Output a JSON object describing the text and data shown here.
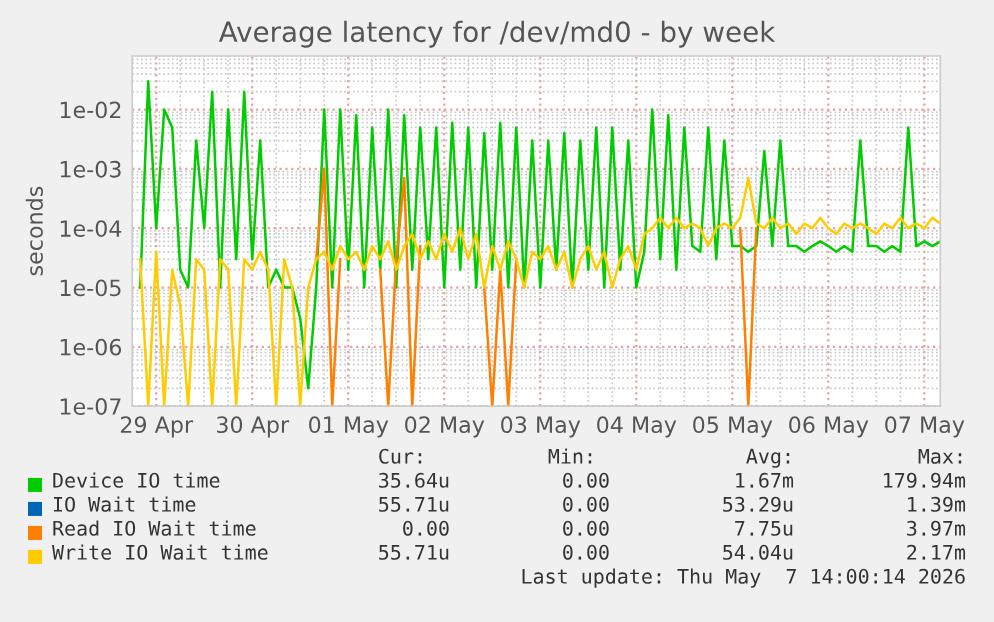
{
  "chart_data": {
    "type": "line",
    "title": "Average latency for /dev/md0 - by week",
    "ylabel": "seconds",
    "log": "y",
    "grid": true,
    "legend": "bottom",
    "marker": "none",
    "line_style": "solid",
    "x": [
      "2026-04-28T20:00",
      "2026-04-28T22:00",
      "2026-04-29T00:00",
      "2026-04-29T02:00",
      "2026-04-29T04:00",
      "2026-04-29T06:00",
      "2026-04-29T08:00",
      "2026-04-29T10:00",
      "2026-04-29T12:00",
      "2026-04-29T14:00",
      "2026-04-29T16:00",
      "2026-04-29T18:00",
      "2026-04-29T20:00",
      "2026-04-29T22:00",
      "2026-04-30T00:00",
      "2026-04-30T02:00",
      "2026-04-30T04:00",
      "2026-04-30T06:00",
      "2026-04-30T08:00",
      "2026-04-30T10:00",
      "2026-04-30T12:00",
      "2026-04-30T14:00",
      "2026-04-30T16:00",
      "2026-04-30T18:00",
      "2026-04-30T20:00",
      "2026-04-30T22:00",
      "2026-05-01T00:00",
      "2026-05-01T02:00",
      "2026-05-01T04:00",
      "2026-05-01T06:00",
      "2026-05-01T08:00",
      "2026-05-01T10:00",
      "2026-05-01T12:00",
      "2026-05-01T14:00",
      "2026-05-01T16:00",
      "2026-05-01T18:00",
      "2026-05-01T20:00",
      "2026-05-01T22:00",
      "2026-05-02T00:00",
      "2026-05-02T02:00",
      "2026-05-02T04:00",
      "2026-05-02T06:00",
      "2026-05-02T08:00",
      "2026-05-02T10:00",
      "2026-05-02T12:00",
      "2026-05-02T14:00",
      "2026-05-02T16:00",
      "2026-05-02T18:00",
      "2026-05-02T20:00",
      "2026-05-02T22:00",
      "2026-05-03T00:00",
      "2026-05-03T02:00",
      "2026-05-03T04:00",
      "2026-05-03T06:00",
      "2026-05-03T08:00",
      "2026-05-03T10:00",
      "2026-05-03T12:00",
      "2026-05-03T14:00",
      "2026-05-03T16:00",
      "2026-05-03T18:00",
      "2026-05-03T20:00",
      "2026-05-03T22:00",
      "2026-05-04T00:00",
      "2026-05-04T02:00",
      "2026-05-04T04:00",
      "2026-05-04T06:00",
      "2026-05-04T08:00",
      "2026-05-04T10:00",
      "2026-05-04T12:00",
      "2026-05-04T14:00",
      "2026-05-04T16:00",
      "2026-05-04T18:00",
      "2026-05-04T20:00",
      "2026-05-04T22:00",
      "2026-05-05T00:00",
      "2026-05-05T02:00",
      "2026-05-05T04:00",
      "2026-05-05T06:00",
      "2026-05-05T08:00",
      "2026-05-05T10:00",
      "2026-05-05T12:00",
      "2026-05-05T14:00",
      "2026-05-05T16:00",
      "2026-05-05T18:00",
      "2026-05-05T20:00",
      "2026-05-05T22:00",
      "2026-05-06T00:00",
      "2026-05-06T02:00",
      "2026-05-06T04:00",
      "2026-05-06T06:00",
      "2026-05-06T08:00",
      "2026-05-06T10:00",
      "2026-05-06T12:00",
      "2026-05-06T14:00",
      "2026-05-06T16:00",
      "2026-05-06T18:00",
      "2026-05-06T20:00",
      "2026-05-06T22:00",
      "2026-05-07T00:00",
      "2026-05-07T02:00",
      "2026-05-07T04:00"
    ],
    "xlim": [
      "2026-04-28T18:00",
      "2026-05-07T04:00"
    ],
    "xticks": [
      {
        "value": "2026-04-29",
        "label": "29 Apr"
      },
      {
        "value": "2026-04-30",
        "label": "30 Apr"
      },
      {
        "value": "2026-05-01",
        "label": "01 May"
      },
      {
        "value": "2026-05-02",
        "label": "02 May"
      },
      {
        "value": "2026-05-03",
        "label": "03 May"
      },
      {
        "value": "2026-05-04",
        "label": "04 May"
      },
      {
        "value": "2026-05-05",
        "label": "05 May"
      },
      {
        "value": "2026-05-06",
        "label": "06 May"
      },
      {
        "value": "2026-05-07",
        "label": "07 May"
      }
    ],
    "ylim": [
      1e-07,
      0.08
    ],
    "yticks": [
      {
        "value": 1e-07,
        "label": "1e-07"
      },
      {
        "value": 1e-06,
        "label": "1e-06"
      },
      {
        "value": 1e-05,
        "label": "1e-05"
      },
      {
        "value": 0.0001,
        "label": "1e-04"
      },
      {
        "value": 0.001,
        "label": "1e-03"
      },
      {
        "value": 0.01,
        "label": "1e-02"
      }
    ],
    "series": [
      {
        "name": "Device IO time",
        "color": "#00cc00",
        "values": [
          1e-05,
          0.03,
          0.0001,
          0.01,
          0.005,
          2e-05,
          1e-05,
          0.003,
          0.0001,
          0.02,
          1e-05,
          0.01,
          3e-05,
          0.02,
          3e-05,
          0.003,
          1e-05,
          2e-05,
          1e-05,
          1e-05,
          3e-06,
          2e-07,
          1e-05,
          0.01,
          1e-05,
          0.01,
          2e-05,
          0.008,
          1e-05,
          0.005,
          2e-05,
          0.01,
          1e-05,
          0.008,
          2e-05,
          0.005,
          3e-05,
          0.005,
          1e-05,
          0.006,
          2e-05,
          0.005,
          1e-05,
          0.004,
          2e-05,
          0.006,
          1e-05,
          0.005,
          1e-05,
          0.003,
          1e-05,
          0.003,
          2e-05,
          0.004,
          1e-05,
          0.003,
          2e-05,
          0.005,
          1e-05,
          0.005,
          2e-05,
          0.003,
          1e-05,
          4e-05,
          0.01,
          3e-05,
          0.008,
          2e-05,
          0.005,
          5e-05,
          4e-05,
          0.005,
          3e-05,
          0.003,
          5e-05,
          5e-05,
          4e-05,
          5e-05,
          0.002,
          5e-05,
          0.003,
          5e-05,
          5e-05,
          4e-05,
          5e-05,
          6e-05,
          5e-05,
          4e-05,
          5e-05,
          4e-05,
          0.003,
          5e-05,
          5e-05,
          4e-05,
          5e-05,
          4e-05,
          0.005,
          5e-05,
          6e-05,
          5e-05,
          6e-05
        ]
      },
      {
        "name": "IO Wait time",
        "color": "#0066b3",
        "values": [
          null,
          null,
          null,
          null,
          null,
          null,
          null,
          null,
          null,
          null,
          null,
          null,
          null,
          null,
          null,
          null,
          null,
          null,
          null,
          null,
          null,
          null,
          null,
          null,
          null,
          null,
          null,
          null,
          null,
          null,
          null,
          null,
          null,
          null,
          null,
          null,
          null,
          null,
          null,
          null,
          null,
          null,
          null,
          null,
          null,
          null,
          null,
          null,
          null,
          null,
          null,
          null,
          null,
          null,
          null,
          null,
          null,
          null,
          null,
          null,
          null,
          null,
          null,
          null,
          null,
          null,
          null,
          null,
          null,
          null,
          null,
          null,
          null,
          null,
          null,
          null,
          null,
          null,
          null,
          null,
          null,
          null,
          null,
          null,
          null,
          null,
          null,
          null,
          null,
          null,
          null,
          null,
          null,
          null,
          null,
          null,
          null,
          null,
          null,
          null,
          null
        ]
      },
      {
        "name": "Read IO Wait time",
        "color": "#ff8000",
        "values": [
          null,
          null,
          null,
          null,
          null,
          null,
          null,
          null,
          null,
          null,
          null,
          null,
          null,
          null,
          null,
          null,
          null,
          null,
          null,
          null,
          null,
          null,
          3e-05,
          0.001,
          1e-07,
          3e-05,
          null,
          null,
          null,
          null,
          2e-05,
          1e-07,
          3e-05,
          0.0007,
          1e-07,
          5e-05,
          null,
          null,
          null,
          null,
          null,
          null,
          null,
          1e-05,
          1e-07,
          2e-05,
          1e-07,
          3e-05,
          null,
          null,
          null,
          null,
          null,
          null,
          null,
          null,
          null,
          null,
          null,
          null,
          null,
          null,
          null,
          null,
          null,
          null,
          null,
          null,
          null,
          null,
          null,
          null,
          null,
          null,
          null,
          0.0001,
          1e-07,
          0.0001,
          null,
          null,
          null,
          null,
          null,
          null,
          null,
          null,
          null,
          null,
          null,
          null,
          null,
          null,
          null,
          null,
          null,
          null,
          null,
          null,
          null,
          null,
          null
        ]
      },
      {
        "name": "Write IO Wait time",
        "color": "#ffcc00",
        "values": [
          3e-05,
          1e-07,
          4e-05,
          1e-07,
          2e-05,
          5e-06,
          1e-07,
          3e-05,
          2e-05,
          1e-07,
          3e-05,
          2e-05,
          1e-07,
          3e-05,
          2e-05,
          4e-05,
          2e-05,
          1e-07,
          3e-05,
          1e-05,
          1e-07,
          1e-05,
          3e-05,
          4e-05,
          2e-05,
          5e-05,
          3e-05,
          4e-05,
          2e-05,
          5e-05,
          3e-05,
          6e-05,
          2e-05,
          5e-05,
          8e-05,
          3e-05,
          6e-05,
          3e-05,
          8e-05,
          4e-05,
          0.0001,
          3e-05,
          8e-05,
          1e-05,
          5e-05,
          2e-05,
          6e-05,
          3e-05,
          1e-05,
          4e-05,
          3e-05,
          5e-05,
          2e-05,
          4e-05,
          1e-05,
          3e-05,
          5e-05,
          2e-05,
          4e-05,
          1e-05,
          3e-05,
          5e-05,
          2e-05,
          8e-05,
          0.0001,
          0.00015,
          0.0001,
          0.00015,
          0.0001,
          0.00012,
          0.0001,
          5e-05,
          0.0001,
          0.00012,
          0.0001,
          0.00015,
          0.0007,
          0.00012,
          0.0001,
          0.00015,
          0.0001,
          0.00012,
          8e-05,
          0.00012,
          0.0001,
          0.00015,
          0.0001,
          8e-05,
          0.00012,
          0.0001,
          0.00012,
          0.0001,
          8e-05,
          0.00012,
          0.0001,
          0.00015,
          0.0001,
          0.00012,
          0.0001,
          0.00015,
          0.00012
        ]
      }
    ],
    "annotations": [
      "Cur:",
      "Min:",
      "Avg:",
      "Max:",
      "35.64u",
      "0.00",
      "1.67m",
      "179.94m",
      "55.71u",
      "0.00",
      "53.29u",
      "1.39m",
      "0.00",
      "0.00",
      "7.75u",
      "3.97m",
      "55.71u",
      "0.00",
      "54.04u",
      "2.17m",
      "Last update: Thu May  7 14:00:14 2026"
    ]
  }
}
